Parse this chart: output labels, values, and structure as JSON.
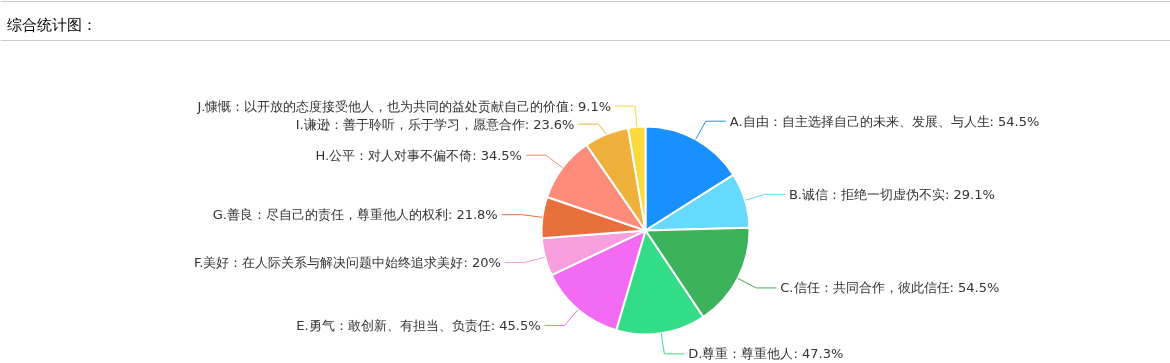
{
  "chart_data": {
    "type": "pie",
    "title": "综合统计图：",
    "categories": [
      "A.自由：自主选择自己的未来、发展、与人生",
      "B.诚信：拒绝一切虚伪不实",
      "C.信任：共同合作，彼此信任",
      "D.尊重：尊重他人",
      "E.勇气：敢创新、有担当、负责任",
      "F.美好：在人际关系与解决问题中始终追求美好",
      "G.善良：尽自己的责任，尊重他人的权利",
      "H.公平：对人对事不偏不倚",
      "I.谦逊：善于聆听，乐于学习，愿意合作",
      "J.慷慨：以开放的态度接受他人，也为共同的益处贡献自己的价值"
    ],
    "values": [
      54.5,
      29.1,
      54.5,
      47.3,
      45.5,
      20,
      21.8,
      34.5,
      23.6,
      9.1
    ],
    "value_labels": [
      "54.5%",
      "29.1%",
      "54.5%",
      "47.3%",
      "45.5%",
      "20%",
      "21.8%",
      "34.5%",
      "23.6%",
      "9.1%"
    ],
    "colors": [
      "#1890ff",
      "#66d9ff",
      "#3cb35a",
      "#33dd88",
      "#f36bf2",
      "#f99fe0",
      "#e8703c",
      "#ff8c7a",
      "#f0b03c",
      "#fcd93a"
    ]
  }
}
